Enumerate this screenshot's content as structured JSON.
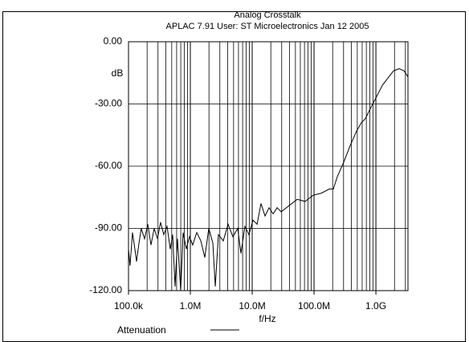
{
  "chart_data": {
    "type": "line",
    "title": "Analog Crosstalk",
    "subtitle": "APLAC 7.91 User: ST Microelectronics  Jan 12 2005",
    "y_label": "dB",
    "x_label": "f/Hz",
    "x_scale": "log",
    "xlim": [
      100000,
      3300000000
    ],
    "xticks": [
      {
        "value": 100000,
        "label": "100.0k"
      },
      {
        "value": 1000000,
        "label": "1.0M"
      },
      {
        "value": 10000000,
        "label": "10.0M"
      },
      {
        "value": 100000000,
        "label": "100.0M"
      },
      {
        "value": 1000000000,
        "label": "1.0G"
      }
    ],
    "ylim": [
      -120,
      0
    ],
    "yticks": [
      {
        "value": -120,
        "label": "-120.00"
      },
      {
        "value": -90,
        "label": "-90.00"
      },
      {
        "value": -60,
        "label": "-60.00"
      },
      {
        "value": -30,
        "label": "-30.00"
      },
      {
        "value": 0,
        "label": "0.00"
      }
    ],
    "grid": true,
    "minor_grid": true,
    "legend": "bottom",
    "x": [
      100000,
      106000,
      116000,
      127000,
      135000,
      148000,
      161000,
      182000,
      205000,
      231000,
      260000,
      294000,
      330000,
      372000,
      420000,
      473000,
      518000,
      566000,
      620000,
      698000,
      764000,
      861000,
      970000,
      1090000,
      1270000,
      1480000,
      1710000,
      1990000,
      2310000,
      2530000,
      2850000,
      3410000,
      4070000,
      4880000,
      5830000,
      6580000,
      7640000,
      8870000,
      10300000,
      12000000,
      13900000,
      16100000,
      18700000,
      21800000,
      25300000,
      29400000,
      39500000,
      53300000,
      71900000,
      97000000,
      131000000,
      177000000,
      205000000,
      238000000,
      303000000,
      384000000,
      488000000,
      583000000,
      678000000,
      787000000,
      1000000000,
      1270000000,
      1610000000,
      1930000000,
      2380000000,
      2850000000,
      3300000000
    ],
    "series": [
      {
        "name": "Attenuation",
        "color": "#000000",
        "values": [
          -100,
          -108,
          -92,
          -100,
          -106,
          -97,
          -90,
          -95,
          -88,
          -98,
          -90,
          -95,
          -87,
          -93,
          -89,
          -100,
          -93,
          -118,
          -95,
          -120,
          -92,
          -100,
          -94,
          -98,
          -92,
          -96,
          -104,
          -90,
          -97,
          -118,
          -93,
          -96,
          -88,
          -94,
          -90,
          -102,
          -89,
          -93,
          -86,
          -88,
          -78,
          -84,
          -80,
          -83,
          -80,
          -82,
          -79,
          -76,
          -77,
          -74,
          -73,
          -71,
          -71,
          -65,
          -58,
          -50,
          -43,
          -39,
          -37,
          -33,
          -27,
          -21,
          -17,
          -14,
          -13,
          -14,
          -17
        ]
      }
    ]
  }
}
